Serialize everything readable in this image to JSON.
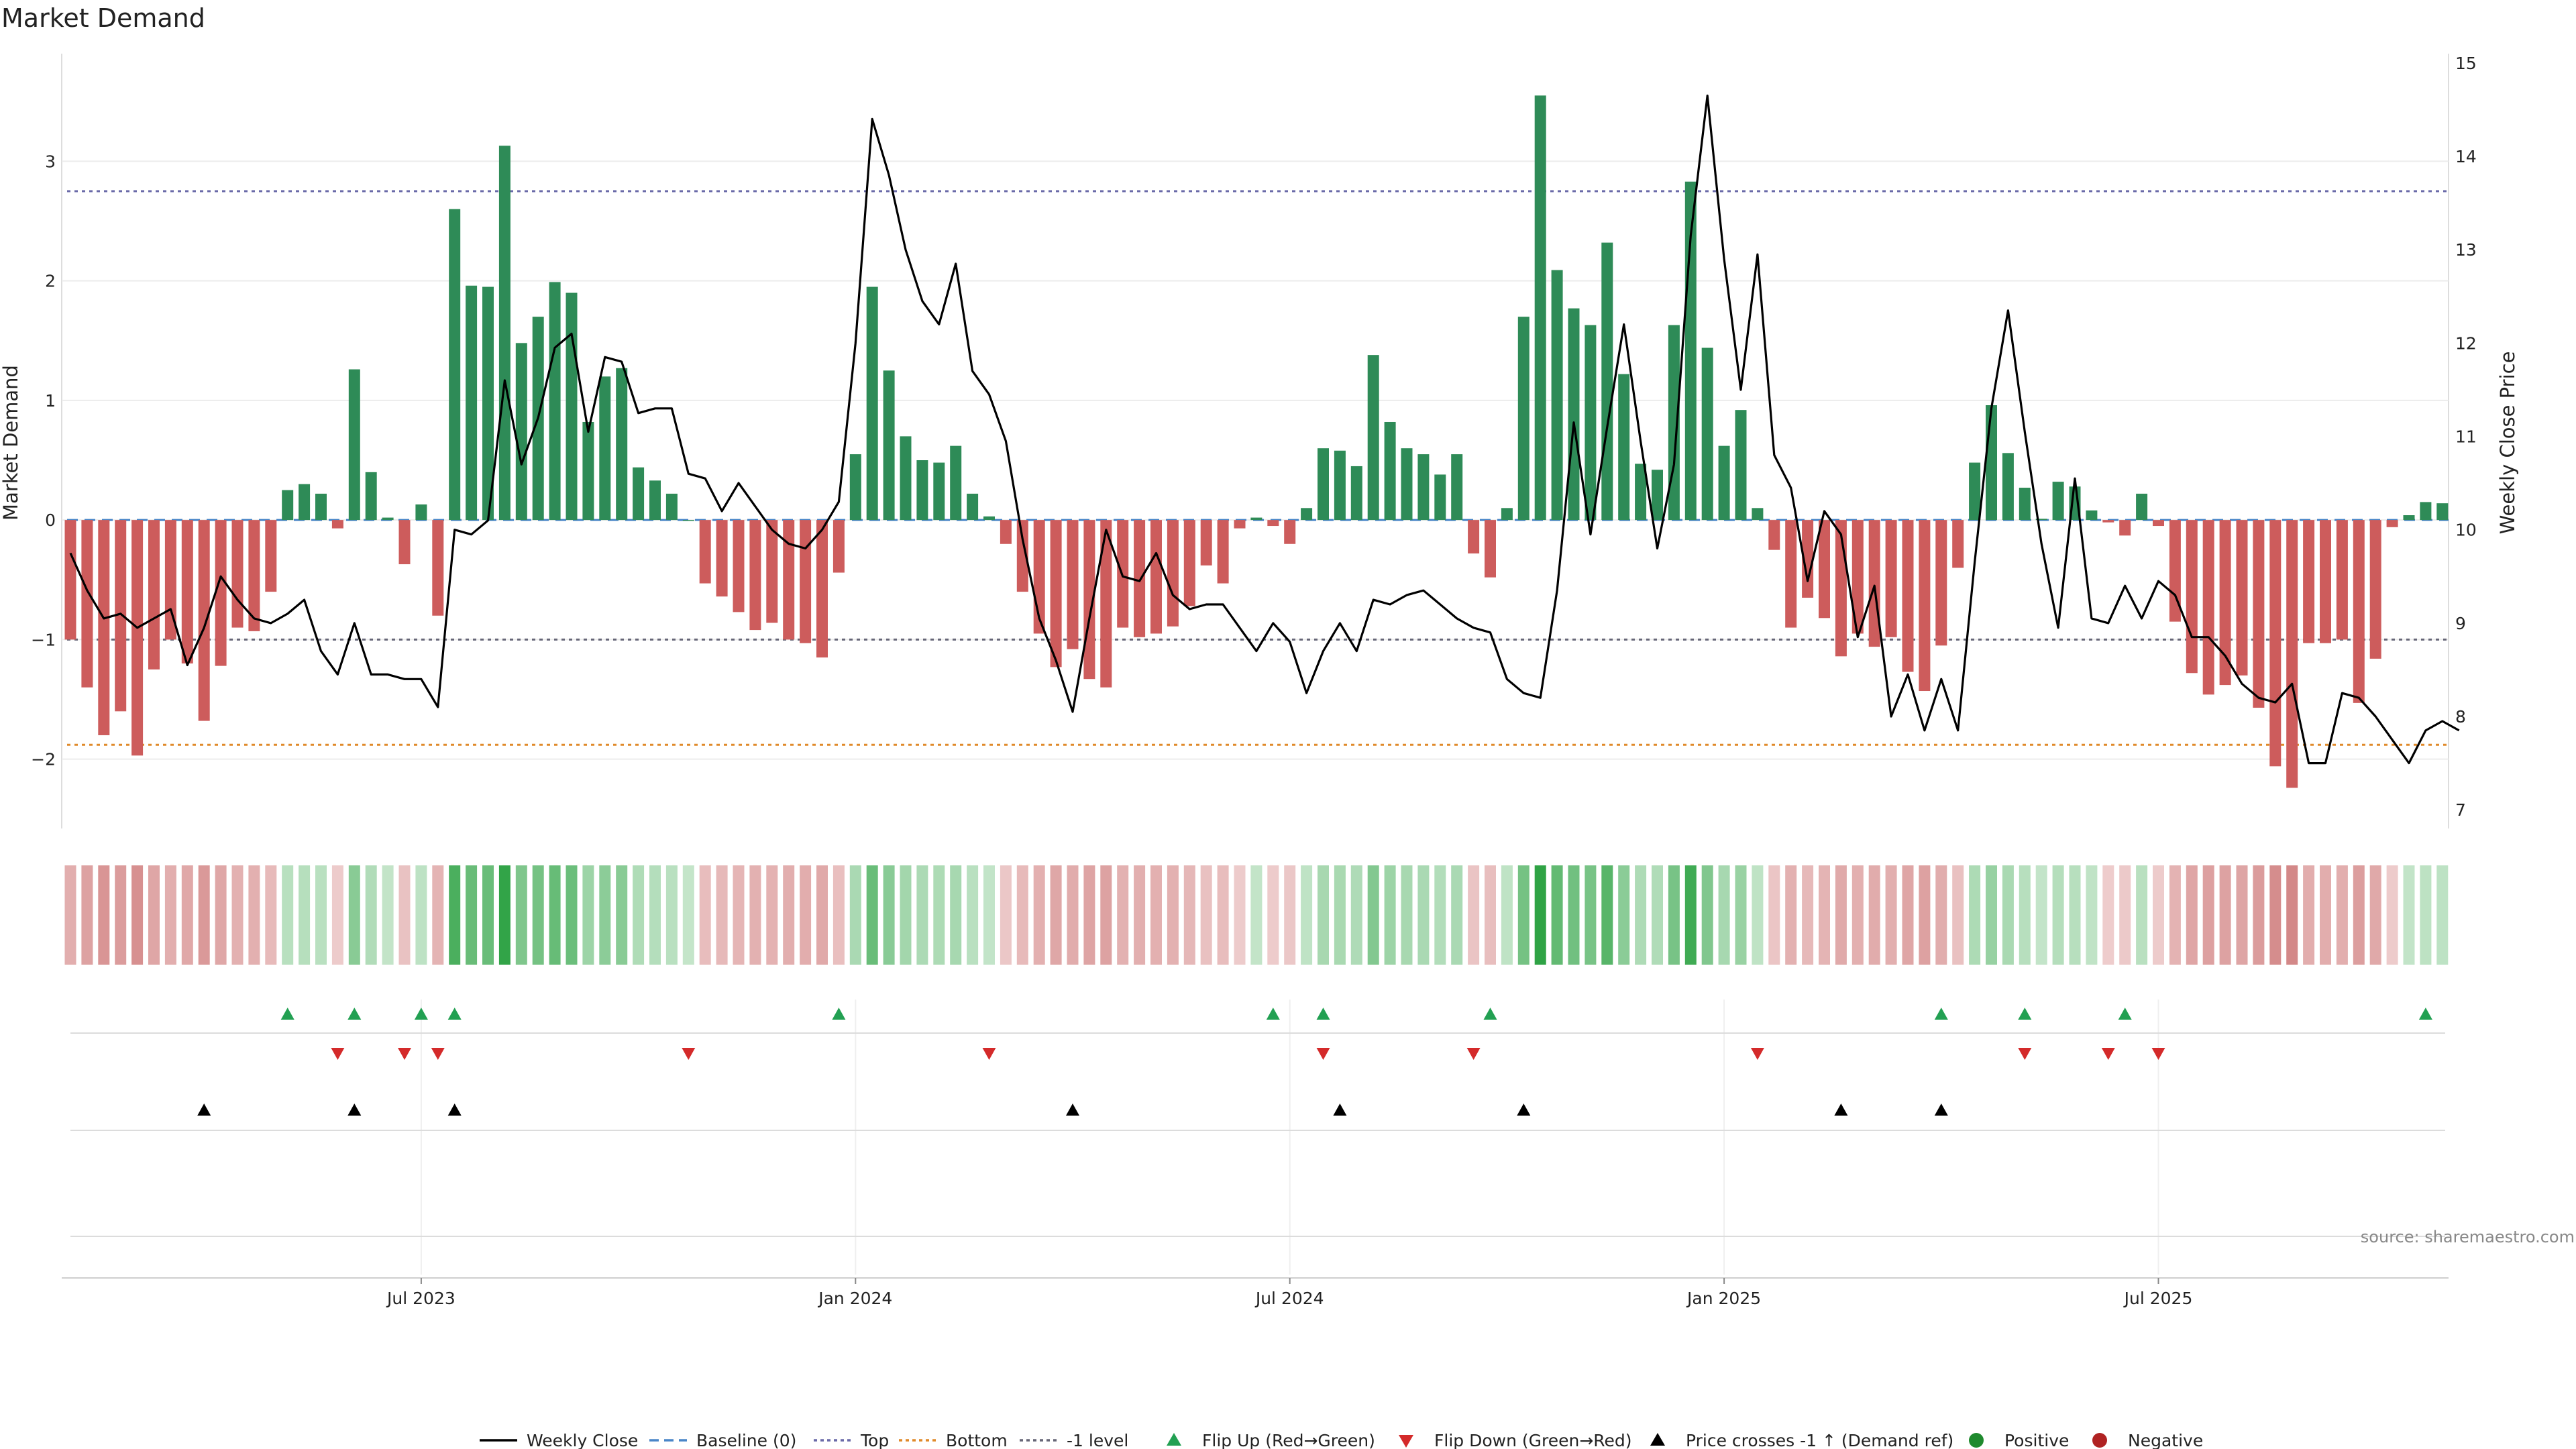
{
  "chart_data": {
    "type": "bar",
    "title": "Market Demand",
    "ylabel": "Market Demand",
    "y2label": "Weekly Close Price",
    "ylim": [
      -2.58,
      3.9
    ],
    "y2lim": [
      6.8,
      15.1
    ],
    "yticks": [
      3,
      2,
      1,
      0,
      -1,
      -2
    ],
    "ytick_labels": [
      "3",
      "2",
      "1",
      "0",
      "−1",
      "−2"
    ],
    "y2ticks": [
      15,
      14,
      13,
      12,
      11,
      10,
      9,
      8,
      7
    ],
    "xticks": [
      {
        "week": 21,
        "label": "Jul 2023"
      },
      {
        "week": 47,
        "label": "Jan 2024"
      },
      {
        "week": 73,
        "label": "Jul 2024"
      },
      {
        "week": 99,
        "label": "Jan 2025"
      },
      {
        "week": 125,
        "label": "Jul 2025"
      }
    ],
    "reference_lines": [
      {
        "name": "Top",
        "value": 2.75,
        "color": "#6a6aa8"
      },
      {
        "name": "Bottom",
        "value": -1.88,
        "color": "#e08a2a"
      },
      {
        "name": "-1 level",
        "value": -1.0,
        "color": "#666677"
      },
      {
        "name": "Baseline (0)",
        "value": 0.0,
        "color": "#4a86c8"
      }
    ],
    "demand": [
      -1.0,
      -1.4,
      -1.8,
      -1.6,
      -1.97,
      -1.25,
      -1.0,
      -1.2,
      -1.68,
      -1.22,
      -0.9,
      -0.93,
      -0.6,
      0.25,
      0.3,
      0.22,
      -0.07,
      1.26,
      0.4,
      0.02,
      -0.37,
      0.13,
      -0.8,
      2.6,
      1.96,
      1.95,
      3.13,
      1.48,
      1.7,
      1.99,
      1.9,
      0.82,
      1.2,
      1.27,
      0.44,
      0.33,
      0.22,
      0.0,
      -0.53,
      -0.64,
      -0.77,
      -0.92,
      -0.86,
      -1.0,
      -1.03,
      -1.15,
      -0.44,
      0.55,
      1.95,
      1.25,
      0.7,
      0.5,
      0.48,
      0.62,
      0.22,
      0.03,
      -0.2,
      -0.6,
      -0.95,
      -1.23,
      -1.08,
      -1.33,
      -1.4,
      -0.9,
      -0.98,
      -0.95,
      -0.89,
      -0.72,
      -0.38,
      -0.53,
      -0.07,
      0.02,
      -0.05,
      -0.2,
      0.1,
      0.6,
      0.58,
      0.45,
      1.38,
      0.82,
      0.6,
      0.55,
      0.38,
      0.55,
      -0.28,
      -0.48,
      0.1,
      1.7,
      3.55,
      2.09,
      1.77,
      1.63,
      2.32,
      1.22,
      0.47,
      0.42,
      1.63,
      2.83,
      1.44,
      0.62,
      0.92,
      0.1,
      -0.25,
      -0.9,
      -0.65,
      -0.82,
      -1.14,
      -0.95,
      -1.06,
      -0.98,
      -1.27,
      -1.43,
      -1.05,
      -0.4,
      0.48,
      0.96,
      0.56,
      0.27,
      0.01,
      0.32,
      0.28,
      0.08,
      -0.02,
      -0.13,
      0.22,
      -0.05,
      -0.85,
      -1.28,
      -1.46,
      -1.38,
      -1.3,
      -1.57,
      -2.06,
      -2.24,
      -1.03,
      -1.03,
      -1.0,
      -1.53,
      -1.16,
      -0.06,
      0.04,
      0.15,
      0.14
    ],
    "weekly_close": [
      9.75,
      9.35,
      9.05,
      9.1,
      8.95,
      9.05,
      9.15,
      8.55,
      8.95,
      9.5,
      9.25,
      9.05,
      9.0,
      9.1,
      9.25,
      8.7,
      8.45,
      9.0,
      8.45,
      8.45,
      8.4,
      8.4,
      8.1,
      10.0,
      9.95,
      10.1,
      11.6,
      10.7,
      11.2,
      11.95,
      12.1,
      11.05,
      11.85,
      11.8,
      11.25,
      11.3,
      11.3,
      10.6,
      10.55,
      10.2,
      10.5,
      10.25,
      10.0,
      9.85,
      9.8,
      10.0,
      10.3,
      12.0,
      14.4,
      13.8,
      13.0,
      12.45,
      12.2,
      12.85,
      11.7,
      11.45,
      10.95,
      9.9,
      9.05,
      8.6,
      8.05,
      9.05,
      10.0,
      9.5,
      9.45,
      9.75,
      9.3,
      9.15,
      9.2,
      9.2,
      8.95,
      8.7,
      9.0,
      8.8,
      8.25,
      8.7,
      9.0,
      8.7,
      9.25,
      9.2,
      9.3,
      9.35,
      9.2,
      9.05,
      8.95,
      8.9,
      8.4,
      8.25,
      8.2,
      9.35,
      11.15,
      9.95,
      11.1,
      12.2,
      10.95,
      9.8,
      10.7,
      13.15,
      14.65,
      12.9,
      11.5,
      12.95,
      10.8,
      10.45,
      9.45,
      10.2,
      9.95,
      8.85,
      9.4,
      8.0,
      8.45,
      7.85,
      8.4,
      7.85,
      9.65,
      11.3,
      12.35,
      11.05,
      9.85,
      8.95,
      10.55,
      9.05,
      9.0,
      9.4,
      9.05,
      9.45,
      9.3,
      8.85,
      8.85,
      8.65,
      8.35,
      8.2,
      8.15,
      8.35,
      7.5,
      7.5,
      8.25,
      8.2,
      8.0,
      7.75,
      7.5,
      7.85,
      7.95,
      7.85
    ],
    "flip_up_weeks": [
      13,
      17,
      21,
      23,
      46,
      72,
      75,
      85,
      112,
      117,
      123,
      141
    ],
    "flip_down_weeks": [
      16,
      20,
      22,
      37,
      55,
      75,
      84,
      101,
      117,
      122,
      125
    ],
    "price_cross_weeks": [
      8,
      17,
      23,
      60,
      76,
      87,
      106,
      112
    ],
    "legend": [
      {
        "label": "Weekly Close",
        "marker": "line",
        "color": "#000000"
      },
      {
        "label": "Baseline (0)",
        "marker": "dash",
        "color": "#4a86c8"
      },
      {
        "label": "Top",
        "marker": "dot",
        "color": "#6a6aa8"
      },
      {
        "label": "Bottom",
        "marker": "dot",
        "color": "#e08a2a"
      },
      {
        "label": "-1 level",
        "marker": "dot",
        "color": "#666677"
      },
      {
        "label": "Flip Up (Red→Green)",
        "marker": "tri-up",
        "color": "#22a052"
      },
      {
        "label": "Flip Down (Green→Red)",
        "marker": "tri-down",
        "color": "#d42a2a"
      },
      {
        "label": "Price crosses -1 ↑ (Demand ref)",
        "marker": "tri-up",
        "color": "#000000"
      },
      {
        "label": "Positive",
        "marker": "circle",
        "color": "#1f8a2e"
      },
      {
        "label": "Negative",
        "marker": "circle",
        "color": "#b02222"
      }
    ],
    "colors": {
      "positive": "#2e8b57",
      "negative": "#cd5c5c"
    },
    "source": "source: sharemaestro.com"
  }
}
